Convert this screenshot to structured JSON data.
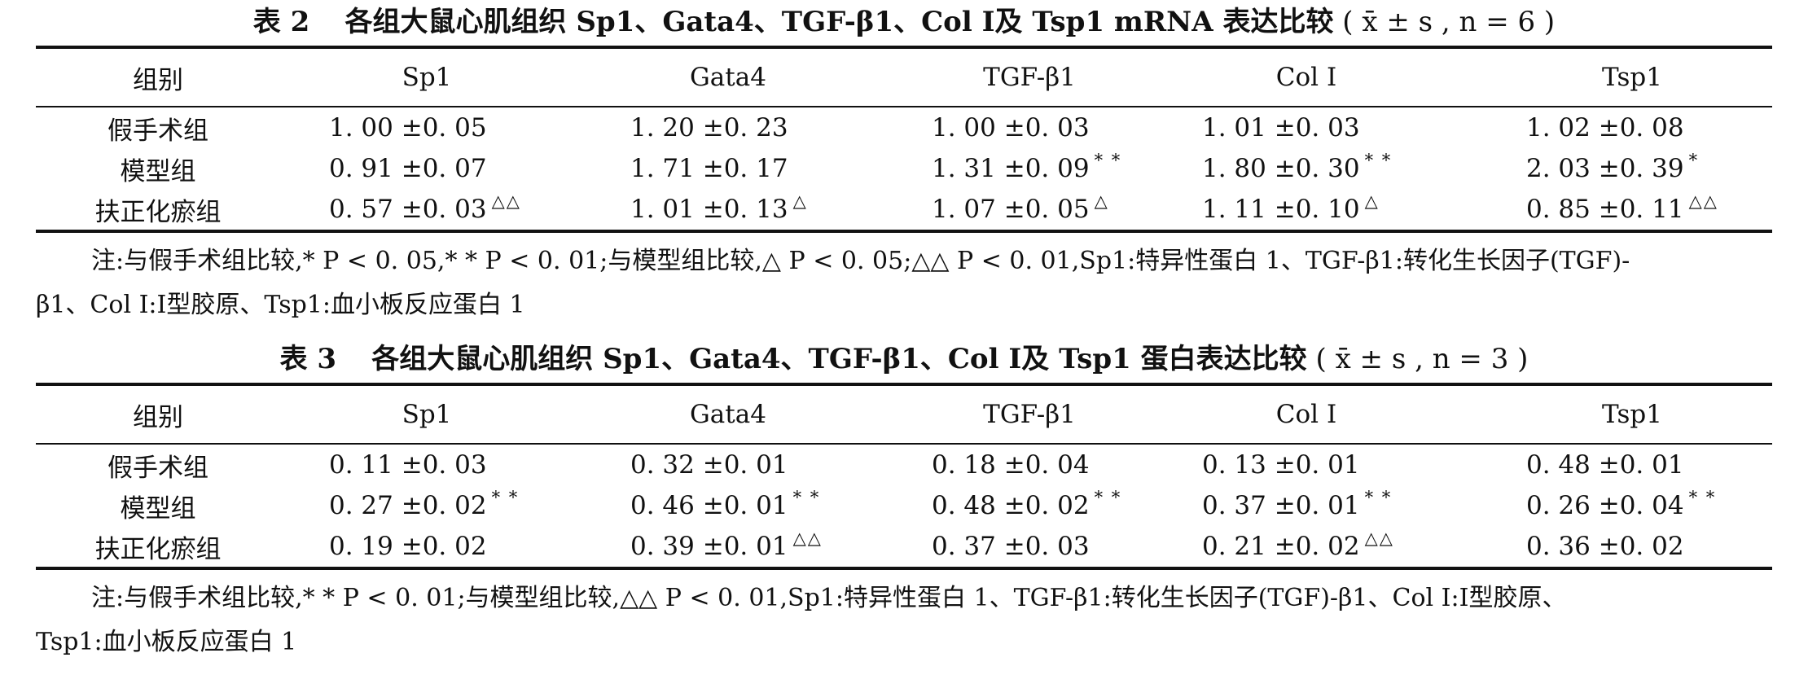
{
  "table2": {
    "caption_label": "表 2",
    "caption_text": "各组大鼠心肌组织 Sp1、Gata4、TGF-β1、Col Ⅰ及 Tsp1 mRNA 表达比较",
    "caption_stat": "( x̄ ± s , n = 6 )",
    "headers": [
      "组别",
      "Sp1",
      "Gata4",
      "TGF-β1",
      "Col Ⅰ",
      "Tsp1"
    ],
    "rows": [
      {
        "group": "假手术组",
        "cells": [
          {
            "v": "1. 00 ±0. 05",
            "s": ""
          },
          {
            "v": "1. 20 ±0. 23",
            "s": ""
          },
          {
            "v": "1. 00 ±0. 03",
            "s": ""
          },
          {
            "v": "1. 01 ±0. 03",
            "s": ""
          },
          {
            "v": "1. 02 ±0. 08",
            "s": ""
          }
        ]
      },
      {
        "group": "模型组",
        "cells": [
          {
            "v": "0. 91 ±0. 07",
            "s": ""
          },
          {
            "v": "1. 71 ±0. 17",
            "s": ""
          },
          {
            "v": "1. 31 ±0. 09",
            "s": "* *"
          },
          {
            "v": "1. 80 ±0. 30",
            "s": "* *"
          },
          {
            "v": "2. 03 ±0. 39",
            "s": "*"
          }
        ]
      },
      {
        "group": "扶正化瘀组",
        "cells": [
          {
            "v": "0. 57 ±0. 03",
            "s": "△△"
          },
          {
            "v": "1. 01 ±0. 13",
            "s": "△"
          },
          {
            "v": "1. 07 ±0. 05",
            "s": "△"
          },
          {
            "v": "1. 11 ±0. 10",
            "s": "△"
          },
          {
            "v": "0. 85 ±0. 11",
            "s": "△△"
          }
        ]
      }
    ],
    "note_line1": "注:与假手术组比较,* P < 0. 05,* * P < 0. 01;与模型组比较,△ P < 0. 05;△△ P < 0. 01,Sp1:特异性蛋白 1、TGF-β1:转化生长因子(TGF)-",
    "note_line2": "β1、Col Ⅰ:Ⅰ型胶原、Tsp1:血小板反应蛋白 1"
  },
  "table3": {
    "caption_label": "表 3",
    "caption_text": "各组大鼠心肌组织 Sp1、Gata4、TGF-β1、Col Ⅰ及 Tsp1 蛋白表达比较",
    "caption_stat": "( x̄ ± s , n = 3 )",
    "headers": [
      "组别",
      "Sp1",
      "Gata4",
      "TGF-β1",
      "Col Ⅰ",
      "Tsp1"
    ],
    "rows": [
      {
        "group": "假手术组",
        "cells": [
          {
            "v": "0. 11 ±0. 03",
            "s": ""
          },
          {
            "v": "0. 32 ±0. 01",
            "s": ""
          },
          {
            "v": "0. 18 ±0. 04",
            "s": ""
          },
          {
            "v": "0. 13 ±0. 01",
            "s": ""
          },
          {
            "v": "0. 48 ±0. 01",
            "s": ""
          }
        ]
      },
      {
        "group": "模型组",
        "cells": [
          {
            "v": "0. 27 ±0. 02",
            "s": "* *"
          },
          {
            "v": "0. 46 ±0. 01",
            "s": "* *"
          },
          {
            "v": "0. 48 ±0. 02",
            "s": "* *"
          },
          {
            "v": "0. 37 ±0. 01",
            "s": "* *"
          },
          {
            "v": "0. 26 ±0. 04",
            "s": "* *"
          }
        ]
      },
      {
        "group": "扶正化瘀组",
        "cells": [
          {
            "v": "0. 19 ±0. 02",
            "s": ""
          },
          {
            "v": "0. 39 ±0. 01",
            "s": "△△"
          },
          {
            "v": "0. 37 ±0. 03",
            "s": ""
          },
          {
            "v": "0. 21 ±0. 02",
            "s": "△△"
          },
          {
            "v": "0. 36 ±0. 02",
            "s": ""
          }
        ]
      }
    ],
    "note_line1": "注:与假手术组比较,* * P < 0. 01;与模型组比较,△△ P < 0. 01,Sp1:特异性蛋白 1、TGF-β1:转化生长因子(TGF)-β1、Col Ⅰ:Ⅰ型胶原、",
    "note_line2": "Tsp1:血小板反应蛋白 1"
  }
}
